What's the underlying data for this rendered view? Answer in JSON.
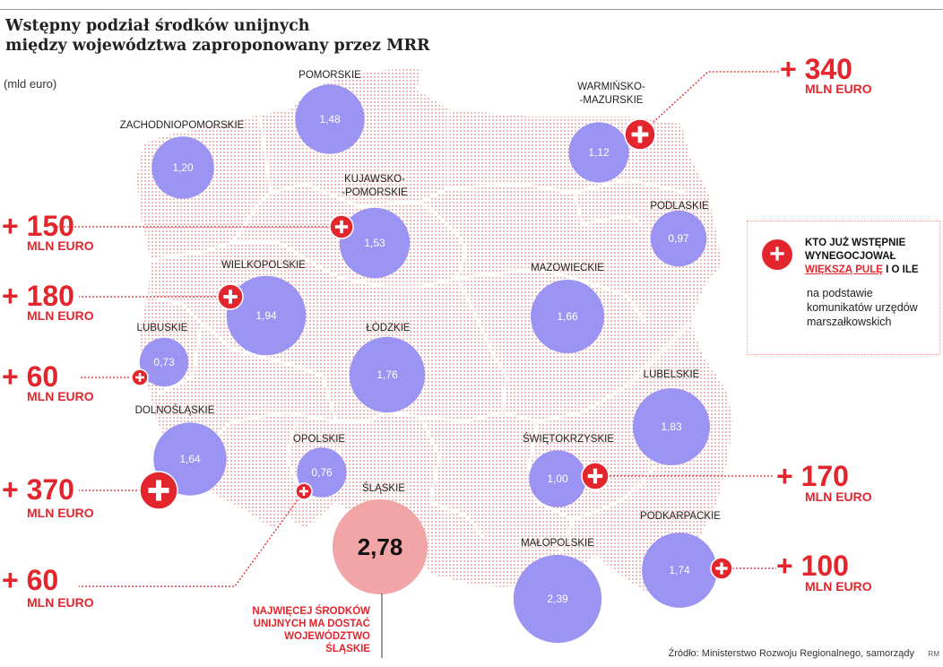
{
  "title_line1": "Wstępny podział środków unijnych",
  "title_line2": "między województwa zaproponowany przez MRR",
  "unit": "(mld euro)",
  "source": "Źródło: Ministerstwo Rozwoju Regionalnego, samorządy",
  "initials": "RM",
  "legend": {
    "title_line1": "KTO JUŻ WSTĘPNIE",
    "title_line2": "WYNEGOCJOWAŁ",
    "title_highlight": "WIĘKSZĄ PULĘ",
    "title_tail": "I O ILE",
    "note": "na podstawie komunikatów urzędów marszałkowskich"
  },
  "annotation_lines": [
    "NAJWIĘCEJ ŚRODKÓW",
    "UNIJNYCH MA DOSTAĆ",
    "WOJEWÓDZTWO",
    "ŚLĄSKIE"
  ],
  "colors": {
    "bubble": "#9b94f2",
    "bubble_top": "#f2a5a6",
    "accent": "#e3262d",
    "map_dots": "#f2b5b5"
  },
  "chart_data": {
    "type": "bubble-map",
    "title": "Wstępny podział środków unijnych między województwa zaproponowany przez MRR",
    "unit": "mld euro",
    "regions": [
      {
        "name": "POMORSKIE",
        "value": 1.48,
        "value_label": "1,48",
        "extra_label": null
      },
      {
        "name": "ZACHODNIOPOMORSKIE",
        "value": 1.2,
        "value_label": "1,20",
        "extra_label": null
      },
      {
        "name": "WARMIŃSKO-MAZURSKIE",
        "name_lines": [
          "WARMIŃSKO-",
          "-MAZURSKIE"
        ],
        "value": 1.12,
        "value_label": "1,12",
        "extra_label": "+ 340"
      },
      {
        "name": "KUJAWSKO-POMORSKIE",
        "name_lines": [
          "KUJAWSKO-",
          "-POMORSKIE"
        ],
        "value": 1.53,
        "value_label": "1,53",
        "extra_label": "+ 150"
      },
      {
        "name": "PODLASKIE",
        "value": 0.97,
        "value_label": "0,97",
        "extra_label": null
      },
      {
        "name": "WIELKOPOLSKIE",
        "value": 1.94,
        "value_label": "1,94",
        "extra_label": "+ 180"
      },
      {
        "name": "MAZOWIECKIE",
        "value": 1.66,
        "value_label": "1,66",
        "extra_label": null
      },
      {
        "name": "LUBUSKIE",
        "value": 0.73,
        "value_label": "0,73",
        "extra_label": "+ 60"
      },
      {
        "name": "ŁÓDZKIE",
        "value": 1.76,
        "value_label": "1,76",
        "extra_label": null
      },
      {
        "name": "LUBELSKIE",
        "value": 1.83,
        "value_label": "1,83",
        "extra_label": null
      },
      {
        "name": "DOLNOŚLĄSKIE",
        "value": 1.64,
        "value_label": "1,64",
        "extra_label": "+ 370"
      },
      {
        "name": "OPOLSKIE",
        "value": 0.76,
        "value_label": "0,76",
        "extra_label": "+ 60"
      },
      {
        "name": "ŚWIĘTOKRZYSKIE",
        "value": 1.0,
        "value_label": "1,00",
        "extra_label": "+ 170"
      },
      {
        "name": "ŚLĄSKIE",
        "value": 2.78,
        "value_label": "2,78",
        "extra_label": null
      },
      {
        "name": "PODKARPACKIE",
        "value": 1.74,
        "value_label": "1,74",
        "extra_label": "+ 100"
      },
      {
        "name": "MAŁOPOLSKIE",
        "value": 2.39,
        "value_label": "2,39",
        "extra_label": null
      }
    ],
    "extra_unit": "MLN EURO"
  }
}
